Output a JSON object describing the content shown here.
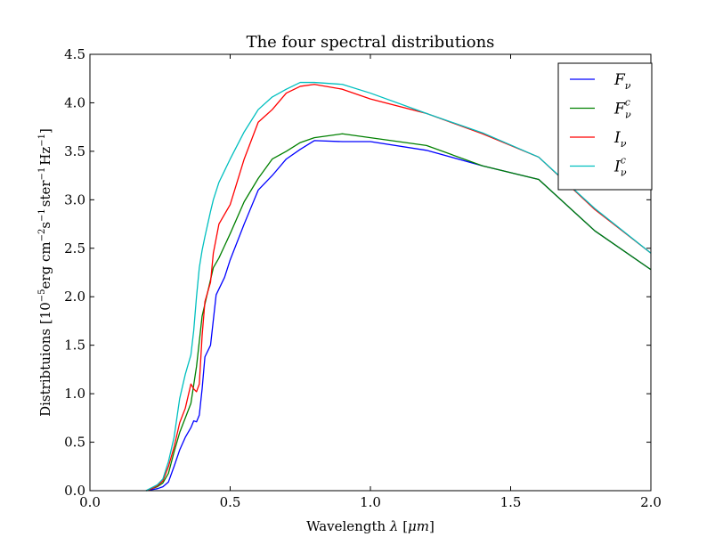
{
  "chart_data": {
    "type": "line",
    "title": "The four spectral distributions",
    "xlabel": {
      "prefix": "Wavelength ",
      "symbol": "λ",
      "unit_open": " [",
      "unit": "μm",
      "unit_close": "]"
    },
    "ylabel": {
      "prefix": "Distribtuions [10",
      "exp1": "−5",
      "part2": "erg cm",
      "exp2": "−2",
      "part3": "s",
      "exp3": "−1",
      "part4": "ster",
      "exp4": "−1",
      "part5": "Hz",
      "exp5": "−1",
      "suffix": "]"
    },
    "xlim": [
      0.0,
      2.0
    ],
    "ylim": [
      0.0,
      4.5
    ],
    "xticks": [
      0.0,
      0.5,
      1.0,
      1.5,
      2.0
    ],
    "xtick_labels": [
      "0.0",
      "0.5",
      "1.0",
      "1.5",
      "2.0"
    ],
    "yticks": [
      0.0,
      0.5,
      1.0,
      1.5,
      2.0,
      2.5,
      3.0,
      3.5,
      4.0,
      4.5
    ],
    "ytick_labels": [
      "0.0",
      "0.5",
      "1.0",
      "1.5",
      "2.0",
      "2.5",
      "3.0",
      "3.5",
      "4.0",
      "4.5"
    ],
    "grid": false,
    "legend_position": "top-right",
    "series": [
      {
        "name": "F_ν",
        "label_base": "F",
        "label_sub": "ν",
        "label_sup": "",
        "color": "#0000ff",
        "x": [
          0.2,
          0.22,
          0.24,
          0.26,
          0.28,
          0.3,
          0.32,
          0.34,
          0.36,
          0.37,
          0.38,
          0.39,
          0.4,
          0.41,
          0.43,
          0.45,
          0.48,
          0.5,
          0.55,
          0.6,
          0.65,
          0.7,
          0.75,
          0.8,
          0.9,
          1.0,
          1.2,
          1.4,
          1.6,
          1.8,
          2.0
        ],
        "y": [
          0.0,
          0.01,
          0.02,
          0.04,
          0.09,
          0.25,
          0.42,
          0.55,
          0.65,
          0.72,
          0.71,
          0.78,
          1.05,
          1.38,
          1.5,
          2.02,
          2.2,
          2.38,
          2.75,
          3.1,
          3.25,
          3.42,
          3.52,
          3.61,
          3.6,
          3.6,
          3.51,
          3.35,
          3.21,
          2.68,
          2.28
        ]
      },
      {
        "name": "F_ν^c",
        "label_base": "F",
        "label_sub": "ν",
        "label_sup": "c",
        "color": "#008000",
        "x": [
          0.2,
          0.22,
          0.24,
          0.26,
          0.28,
          0.3,
          0.32,
          0.34,
          0.36,
          0.38,
          0.4,
          0.42,
          0.44,
          0.46,
          0.5,
          0.55,
          0.6,
          0.65,
          0.7,
          0.75,
          0.8,
          0.9,
          1.0,
          1.2,
          1.4,
          1.6,
          1.8,
          2.0
        ],
        "y": [
          0.0,
          0.02,
          0.04,
          0.08,
          0.18,
          0.4,
          0.6,
          0.75,
          0.9,
          1.28,
          1.8,
          2.05,
          2.3,
          2.4,
          2.65,
          2.98,
          3.22,
          3.42,
          3.5,
          3.59,
          3.64,
          3.68,
          3.64,
          3.56,
          3.35,
          3.21,
          2.68,
          2.28
        ]
      },
      {
        "name": "I_ν",
        "label_base": "I",
        "label_sub": "ν",
        "label_sup": "",
        "color": "#ff0000",
        "x": [
          0.2,
          0.22,
          0.24,
          0.26,
          0.28,
          0.3,
          0.32,
          0.34,
          0.36,
          0.37,
          0.38,
          0.39,
          0.4,
          0.41,
          0.42,
          0.43,
          0.44,
          0.46,
          0.5,
          0.55,
          0.6,
          0.65,
          0.7,
          0.75,
          0.8,
          0.9,
          1.0,
          1.2,
          1.4,
          1.6,
          1.8,
          2.0
        ],
        "y": [
          0.0,
          0.02,
          0.05,
          0.1,
          0.25,
          0.45,
          0.7,
          0.85,
          1.1,
          1.05,
          1.02,
          1.1,
          1.6,
          1.95,
          2.05,
          2.15,
          2.45,
          2.75,
          2.95,
          3.42,
          3.8,
          3.93,
          4.1,
          4.17,
          4.19,
          4.14,
          4.04,
          3.89,
          3.68,
          3.44,
          2.9,
          2.45
        ]
      },
      {
        "name": "I_ν^c",
        "label_base": "I",
        "label_sub": "ν",
        "label_sup": "c",
        "color": "#00bfbf",
        "x": [
          0.2,
          0.22,
          0.24,
          0.26,
          0.28,
          0.3,
          0.32,
          0.34,
          0.36,
          0.37,
          0.38,
          0.39,
          0.4,
          0.41,
          0.42,
          0.43,
          0.44,
          0.46,
          0.48,
          0.5,
          0.55,
          0.6,
          0.65,
          0.7,
          0.75,
          0.8,
          0.9,
          1.0,
          1.2,
          1.4,
          1.6,
          1.8,
          2.0
        ],
        "y": [
          0.0,
          0.03,
          0.06,
          0.12,
          0.3,
          0.55,
          0.95,
          1.2,
          1.4,
          1.65,
          2.0,
          2.3,
          2.48,
          2.62,
          2.75,
          2.88,
          3.0,
          3.18,
          3.3,
          3.42,
          3.7,
          3.93,
          4.06,
          4.14,
          4.21,
          4.21,
          4.19,
          4.1,
          3.89,
          3.69,
          3.44,
          2.91,
          2.45
        ]
      }
    ]
  }
}
